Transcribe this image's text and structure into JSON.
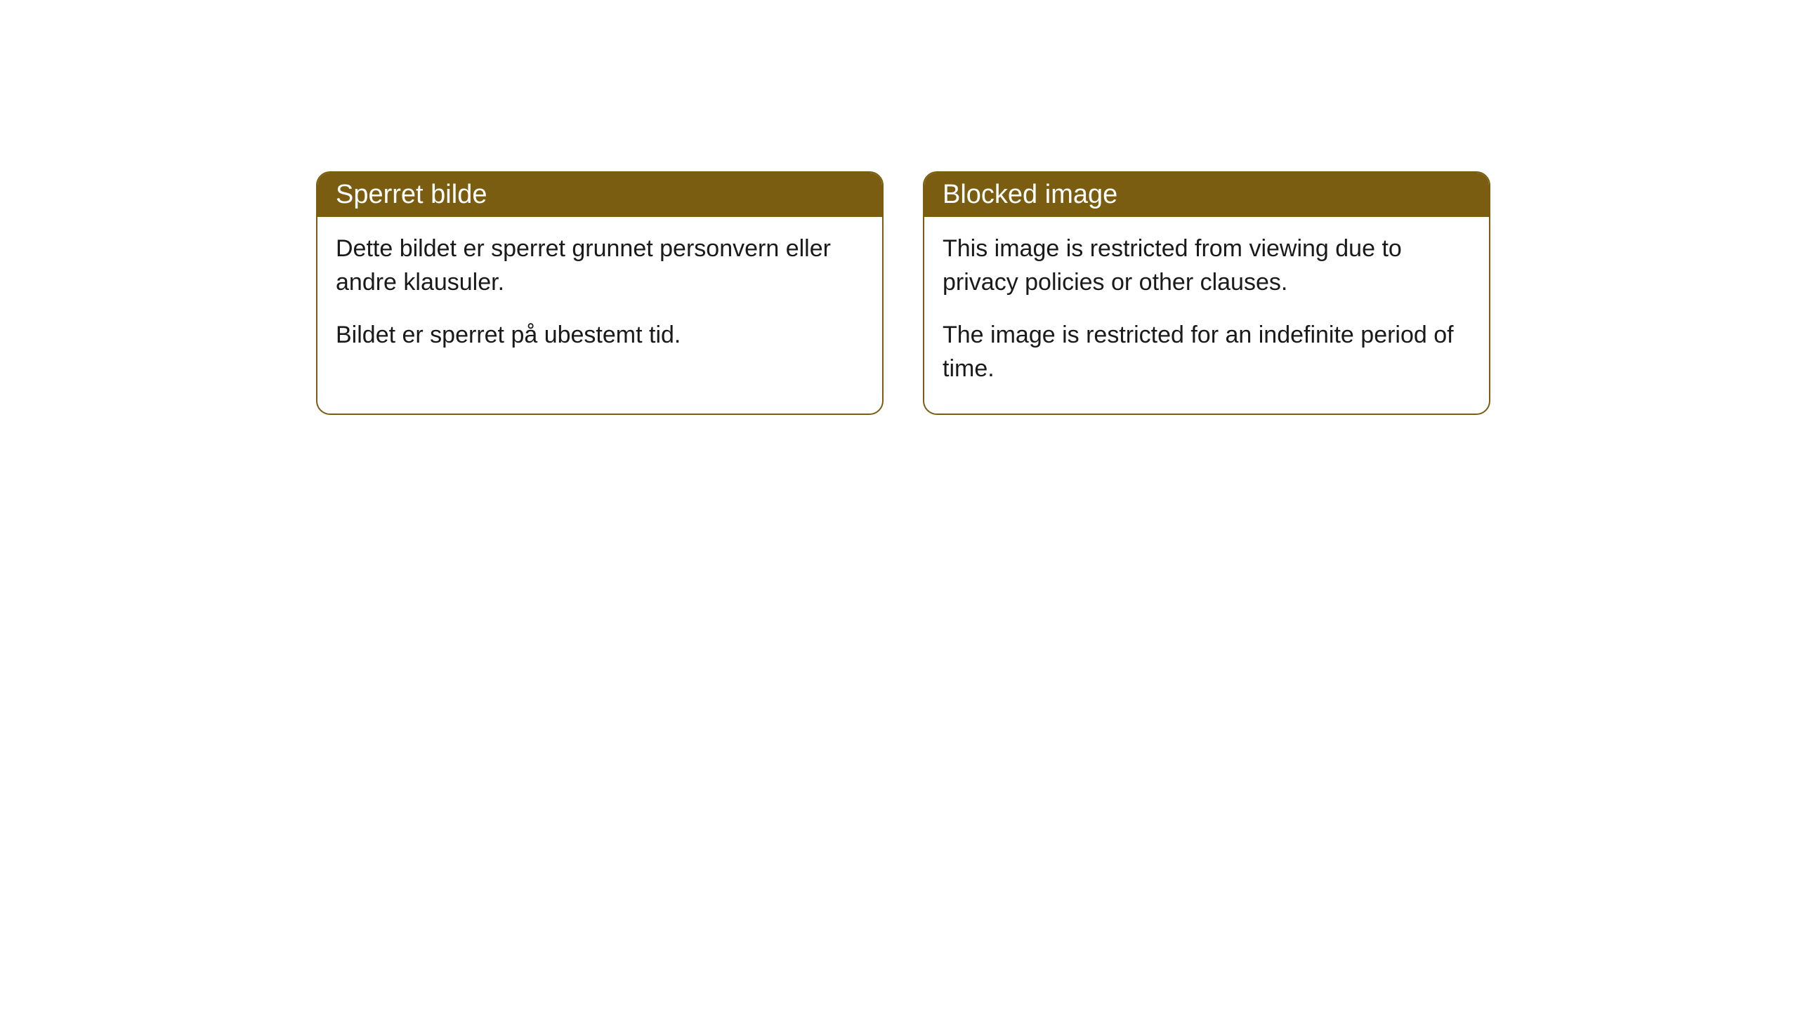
{
  "cards": [
    {
      "title": "Sperret bilde",
      "paragraph1": "Dette bildet er sperret grunnet personvern eller andre klausuler.",
      "paragraph2": "Bildet er sperret på ubestemt tid."
    },
    {
      "title": "Blocked image",
      "paragraph1": "This image is restricted from viewing due to privacy policies or other clauses.",
      "paragraph2": "The image is restricted for an indefinite period of time."
    }
  ],
  "styling": {
    "header_background": "#7a5d11",
    "header_text_color": "#ffffff",
    "border_color": "#7a5d11",
    "body_background": "#ffffff",
    "body_text_color": "#1a1a1a",
    "border_radius": 20,
    "header_fontsize": 38,
    "body_fontsize": 34
  }
}
